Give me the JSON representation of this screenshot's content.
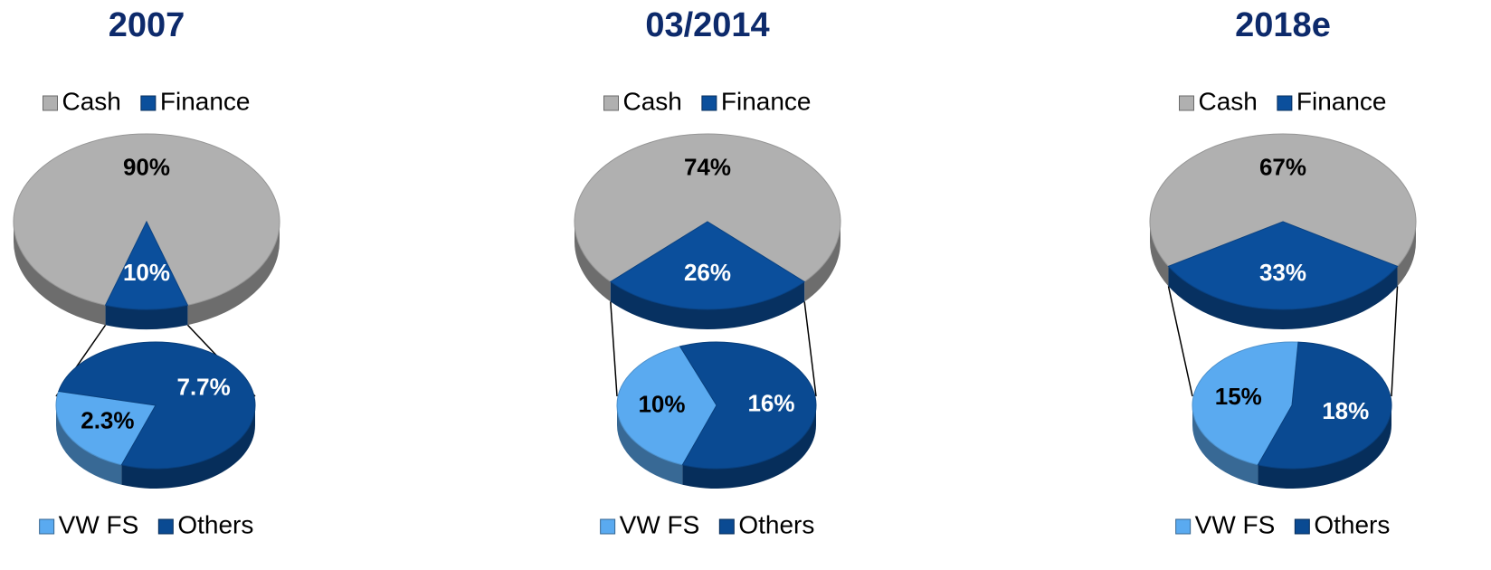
{
  "chart_data": [
    {
      "type": "pie",
      "title": "2007",
      "pie": {
        "categories": [
          "Cash",
          "Finance"
        ],
        "values": [
          90,
          10
        ],
        "value_labels": [
          "90%",
          "10%"
        ],
        "colors": [
          "#b0b0b0",
          "#0b4f9c"
        ],
        "label_colors": [
          "#000000",
          "#ffffff"
        ]
      },
      "sub_pie": {
        "categories": [
          "VW FS",
          "Others"
        ],
        "values": [
          2.3,
          7.7
        ],
        "value_labels": [
          "2.3%",
          "7.7%"
        ],
        "colors": [
          "#5aaaf0",
          "#0a4a92"
        ],
        "label_colors": [
          "#000000",
          "#ffffff"
        ]
      }
    },
    {
      "type": "pie",
      "title": "03/2014",
      "pie": {
        "categories": [
          "Cash",
          "Finance"
        ],
        "values": [
          74,
          26
        ],
        "value_labels": [
          "74%",
          "26%"
        ],
        "colors": [
          "#b0b0b0",
          "#0b4f9c"
        ],
        "label_colors": [
          "#000000",
          "#ffffff"
        ]
      },
      "sub_pie": {
        "categories": [
          "VW FS",
          "Others"
        ],
        "values": [
          10,
          16
        ],
        "value_labels": [
          "10%",
          "16%"
        ],
        "colors": [
          "#5aaaf0",
          "#0a4a92"
        ],
        "label_colors": [
          "#000000",
          "#ffffff"
        ]
      }
    },
    {
      "type": "pie",
      "title": "2018e",
      "pie": {
        "categories": [
          "Cash",
          "Finance"
        ],
        "values": [
          67,
          33
        ],
        "value_labels": [
          "67%",
          "33%"
        ],
        "colors": [
          "#b0b0b0",
          "#0b4f9c"
        ],
        "label_colors": [
          "#000000",
          "#ffffff"
        ]
      },
      "sub_pie": {
        "categories": [
          "VW FS",
          "Others"
        ],
        "values": [
          15,
          18
        ],
        "value_labels": [
          "15%",
          "18%"
        ],
        "colors": [
          "#5aaaf0",
          "#0a4a92"
        ],
        "label_colors": [
          "#000000",
          "#ffffff"
        ]
      }
    }
  ]
}
